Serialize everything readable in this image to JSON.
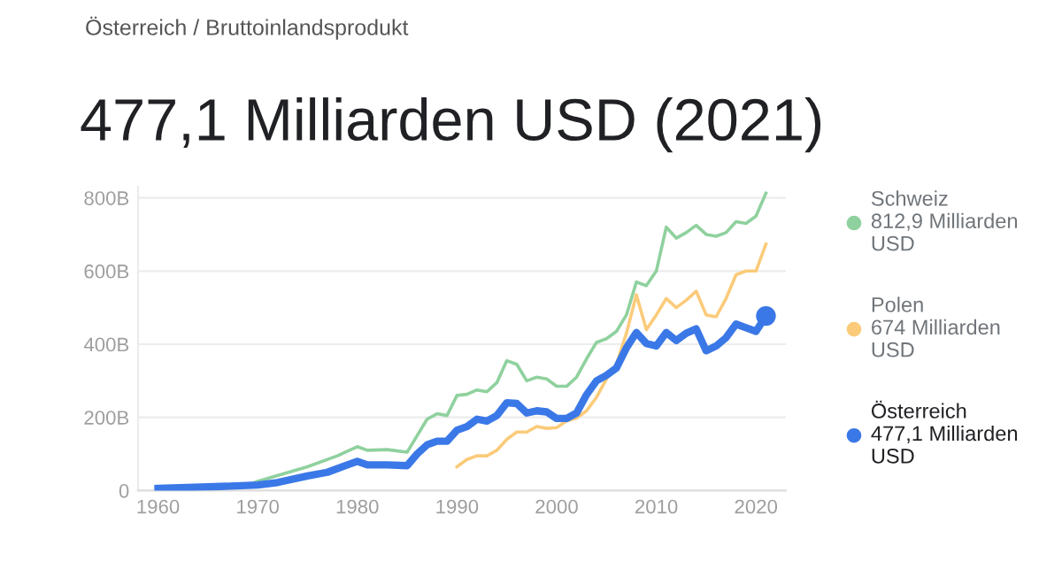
{
  "chart_data": {
    "type": "line",
    "subtitle": "Österreich / Bruttoinlandsprodukt",
    "title": "477,1 Milliarden USD (2021)",
    "xlim": [
      1958,
      2023
    ],
    "xticks": [
      1960,
      1970,
      1980,
      1990,
      2000,
      2010,
      2020
    ],
    "ylim": [
      0,
      830
    ],
    "yticks": [
      0,
      {
        "value": 200,
        "label": "200B"
      },
      {
        "value": 400,
        "label": "400B"
      },
      {
        "value": 600,
        "label": "600B"
      },
      {
        "value": 800,
        "label": "800B"
      }
    ],
    "grid": "y",
    "legend": "right",
    "series": [
      {
        "name": "Schweiz\n812,9 Milliarden\nUSD",
        "color": "#8fd19e",
        "x": [
          1969,
          1970,
          1975,
          1978,
          1980,
          1981,
          1983,
          1985,
          1986,
          1987,
          1988,
          1989,
          1990,
          1991,
          1992,
          1993,
          1994,
          1995,
          1996,
          1997,
          1998,
          1999,
          2000,
          2001,
          2002,
          2003,
          2004,
          2005,
          2006,
          2007,
          2008,
          2009,
          2010,
          2011,
          2012,
          2013,
          2014,
          2015,
          2016,
          2017,
          2018,
          2019,
          2020,
          2021
        ],
        "values": [
          15,
          25,
          65,
          95,
          120,
          110,
          112,
          105,
          150,
          195,
          210,
          205,
          260,
          263,
          275,
          270,
          295,
          355,
          345,
          300,
          310,
          305,
          285,
          285,
          310,
          360,
          405,
          415,
          435,
          480,
          570,
          560,
          600,
          720,
          690,
          705,
          725,
          700,
          695,
          705,
          735,
          730,
          750,
          812.9
        ]
      },
      {
        "name": "Polen\n674 Milliarden\nUSD",
        "color": "#fbcb7a",
        "x": [
          1990,
          1991,
          1992,
          1993,
          1994,
          1995,
          1996,
          1997,
          1998,
          1999,
          2000,
          2001,
          2002,
          2003,
          2004,
          2005,
          2006,
          2007,
          2008,
          2009,
          2010,
          2011,
          2012,
          2013,
          2014,
          2015,
          2016,
          2017,
          2018,
          2019,
          2020,
          2021
        ],
        "values": [
          65,
          85,
          95,
          95,
          110,
          140,
          160,
          160,
          175,
          170,
          172,
          190,
          198,
          218,
          255,
          305,
          345,
          430,
          535,
          440,
          480,
          525,
          500,
          520,
          545,
          480,
          475,
          525,
          590,
          600,
          600,
          674
        ]
      },
      {
        "name": "Österreich\n477,1 Milliarden\nUSD",
        "color": "#3b78e7",
        "x": [
          1960,
          1965,
          1970,
          1972,
          1975,
          1977,
          1979,
          1980,
          1981,
          1983,
          1985,
          1986,
          1987,
          1988,
          1989,
          1990,
          1991,
          1992,
          1993,
          1994,
          1995,
          1996,
          1997,
          1998,
          1999,
          2000,
          2001,
          2002,
          2003,
          2004,
          2005,
          2006,
          2007,
          2008,
          2009,
          2010,
          2011,
          2012,
          2013,
          2014,
          2015,
          2016,
          2017,
          2018,
          2019,
          2020,
          2021
        ],
        "values": [
          6,
          10,
          15,
          22,
          40,
          50,
          70,
          80,
          70,
          70,
          68,
          100,
          125,
          135,
          135,
          165,
          175,
          195,
          190,
          205,
          240,
          238,
          212,
          218,
          215,
          197,
          197,
          212,
          262,
          300,
          315,
          335,
          390,
          432,
          402,
          395,
          432,
          410,
          430,
          442,
          382,
          395,
          418,
          455,
          445,
          435,
          477.1
        ]
      },
      {
        "type": "scatter",
        "color": "#3b78e7",
        "x": [
          2021
        ],
        "values": [
          477.1
        ]
      }
    ]
  }
}
